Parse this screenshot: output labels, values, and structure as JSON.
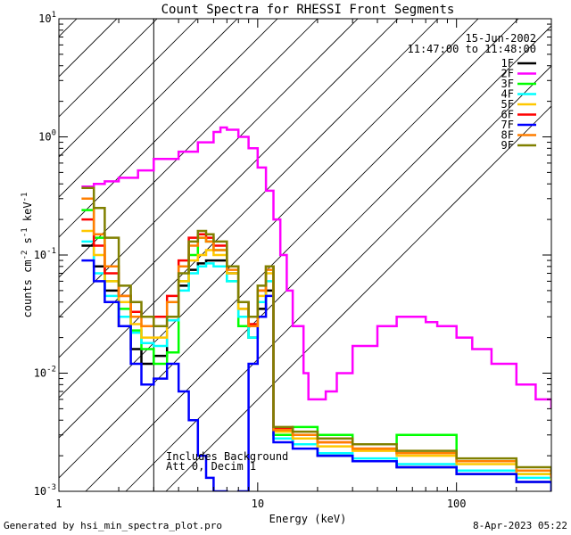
{
  "chart_data": {
    "type": "line",
    "title": "Count Spectra for RHESSI Front Segments",
    "xlabel": "Energy (keV)",
    "ylabel_parts": [
      "counts cm",
      "-2",
      " s",
      "-1",
      " keV",
      "-1"
    ],
    "xscale": "log",
    "yscale": "log",
    "xlim": [
      1,
      300
    ],
    "ylim": [
      0.001,
      10
    ],
    "xticks": [
      {
        "v": 1,
        "label": "1"
      },
      {
        "v": 10,
        "label": "10"
      },
      {
        "v": 100,
        "label": "100"
      }
    ],
    "yticks": [
      {
        "v": 0.001,
        "base": "10",
        "exp": "-3"
      },
      {
        "v": 0.01,
        "base": "10",
        "exp": "-2"
      },
      {
        "v": 0.1,
        "base": "10",
        "exp": "-1"
      },
      {
        "v": 1,
        "base": "10",
        "exp": "0"
      },
      {
        "v": 10,
        "base": "10",
        "exp": "1"
      }
    ],
    "date": "15-Jun-2002",
    "time_range": "11:47:00 to 11:48:00",
    "hatched_region_max_energy": 3,
    "annotations": [
      "Includes Background",
      "Att 0, Decim 1"
    ],
    "series": [
      {
        "name": "1F",
        "color": "#000000",
        "e": [
          1.3,
          1.5,
          1.7,
          2,
          2.3,
          2.6,
          3,
          3.5,
          4,
          4.5,
          5,
          5.5,
          6,
          7,
          8,
          9,
          10,
          11,
          12,
          15,
          20,
          30,
          50,
          100,
          200,
          300
        ],
        "v": [
          0.12,
          0.08,
          0.05,
          0.025,
          0.016,
          0.012,
          0.014,
          0.03,
          0.055,
          0.075,
          0.085,
          0.09,
          0.09,
          0.07,
          0.035,
          0.02,
          0.035,
          0.05,
          0.003,
          0.0025,
          0.002,
          0.0018,
          0.0016,
          0.0014,
          0.0012,
          0.001
        ]
      },
      {
        "name": "2F",
        "color": "#ff00ff",
        "e": [
          1.3,
          1.5,
          1.7,
          2,
          2.5,
          3,
          4,
          5,
          6,
          6.5,
          7,
          8,
          9,
          10,
          11,
          12,
          13,
          14,
          15,
          17,
          18,
          20,
          22,
          25,
          30,
          40,
          50,
          60,
          70,
          80,
          100,
          120,
          150,
          200,
          250,
          300
        ],
        "v": [
          0.38,
          0.4,
          0.42,
          0.45,
          0.52,
          0.65,
          0.75,
          0.9,
          1.1,
          1.2,
          1.15,
          1.0,
          0.8,
          0.55,
          0.35,
          0.2,
          0.1,
          0.05,
          0.025,
          0.01,
          0.006,
          0.006,
          0.007,
          0.01,
          0.017,
          0.025,
          0.03,
          0.03,
          0.027,
          0.025,
          0.02,
          0.016,
          0.012,
          0.008,
          0.006,
          0.005
        ]
      },
      {
        "name": "3F",
        "color": "#00ff00",
        "e": [
          1.3,
          1.5,
          1.7,
          2,
          2.3,
          2.6,
          3,
          3.5,
          4,
          4.5,
          5,
          5.5,
          6,
          7,
          8,
          9,
          10,
          11,
          12,
          15,
          20,
          30,
          50,
          100,
          200,
          300
        ],
        "v": [
          0.24,
          0.14,
          0.06,
          0.035,
          0.023,
          0.016,
          0.012,
          0.015,
          0.06,
          0.1,
          0.14,
          0.13,
          0.11,
          0.06,
          0.025,
          0.02,
          0.04,
          0.08,
          0.003,
          0.0035,
          0.003,
          0.0025,
          0.003,
          0.0018,
          0.0014,
          0.0012
        ]
      },
      {
        "name": "4F",
        "color": "#00ffff",
        "e": [
          1.3,
          1.5,
          1.7,
          2,
          2.3,
          2.6,
          3,
          3.5,
          4,
          4.5,
          5,
          5.5,
          6,
          7,
          8,
          9,
          10,
          11,
          12,
          15,
          20,
          30,
          50,
          100,
          200,
          300
        ],
        "v": [
          0.13,
          0.07,
          0.045,
          0.03,
          0.022,
          0.018,
          0.017,
          0.028,
          0.05,
          0.07,
          0.08,
          0.085,
          0.08,
          0.06,
          0.03,
          0.02,
          0.04,
          0.06,
          0.0028,
          0.0025,
          0.0021,
          0.0019,
          0.0017,
          0.0015,
          0.0013,
          0.0011
        ]
      },
      {
        "name": "5F",
        "color": "#ffc800",
        "e": [
          1.3,
          1.5,
          1.7,
          2,
          2.3,
          2.6,
          3,
          3.5,
          4,
          4.5,
          5,
          5.5,
          6,
          7,
          8,
          9,
          10,
          11,
          12,
          15,
          20,
          30,
          50,
          100,
          200,
          300
        ],
        "v": [
          0.16,
          0.1,
          0.06,
          0.04,
          0.026,
          0.02,
          0.02,
          0.03,
          0.06,
          0.09,
          0.1,
          0.11,
          0.1,
          0.07,
          0.035,
          0.025,
          0.045,
          0.07,
          0.0032,
          0.0028,
          0.0024,
          0.0022,
          0.002,
          0.0017,
          0.0014,
          0.0012
        ]
      },
      {
        "name": "6F",
        "color": "#ff0000",
        "e": [
          1.3,
          1.5,
          1.7,
          2,
          2.3,
          2.6,
          3,
          3.5,
          4,
          4.5,
          5,
          5.5,
          6,
          7,
          8,
          9,
          10,
          11,
          12,
          15,
          20,
          30,
          50,
          100,
          200,
          300
        ],
        "v": [
          0.2,
          0.12,
          0.07,
          0.045,
          0.033,
          0.03,
          0.03,
          0.045,
          0.09,
          0.14,
          0.15,
          0.14,
          0.12,
          0.08,
          0.04,
          0.026,
          0.05,
          0.08,
          0.0034,
          0.003,
          0.0026,
          0.0023,
          0.0021,
          0.0018,
          0.0015,
          0.0013
        ]
      },
      {
        "name": "7F",
        "color": "#0000ff",
        "e": [
          1.3,
          1.5,
          1.7,
          2,
          2.3,
          2.6,
          3,
          3.5,
          4,
          4.5,
          5,
          5.5,
          6,
          7,
          8,
          9,
          10,
          11,
          12,
          15,
          20,
          30,
          50,
          100,
          200,
          300
        ],
        "v": [
          0.09,
          0.06,
          0.04,
          0.025,
          0.012,
          0.008,
          0.009,
          0.012,
          0.007,
          0.004,
          0.002,
          0.0013,
          0.001,
          0.0009,
          0.001,
          0.012,
          0.03,
          0.045,
          0.0026,
          0.0023,
          0.002,
          0.0018,
          0.0016,
          0.0014,
          0.0012,
          0.001
        ]
      },
      {
        "name": "8F",
        "color": "#ff7f00",
        "e": [
          1.3,
          1.5,
          1.7,
          2,
          2.3,
          2.6,
          3,
          3.5,
          4,
          4.5,
          5,
          5.5,
          6,
          7,
          8,
          9,
          10,
          11,
          12,
          15,
          20,
          30,
          50,
          100,
          200,
          300
        ],
        "v": [
          0.3,
          0.15,
          0.08,
          0.045,
          0.03,
          0.025,
          0.025,
          0.04,
          0.08,
          0.12,
          0.14,
          0.13,
          0.11,
          0.075,
          0.04,
          0.025,
          0.05,
          0.075,
          0.0033,
          0.003,
          0.0026,
          0.0023,
          0.0021,
          0.0018,
          0.0015,
          0.0013
        ]
      },
      {
        "name": "9F",
        "color": "#808000",
        "e": [
          1.3,
          1.5,
          1.7,
          2,
          2.3,
          2.6,
          3,
          3.5,
          4,
          4.5,
          5,
          5.5,
          6,
          7,
          8,
          9,
          10,
          11,
          12,
          15,
          20,
          30,
          50,
          100,
          200,
          300
        ],
        "v": [
          0.37,
          0.25,
          0.14,
          0.055,
          0.04,
          0.03,
          0.025,
          0.03,
          0.07,
          0.13,
          0.16,
          0.15,
          0.13,
          0.08,
          0.04,
          0.03,
          0.055,
          0.08,
          0.0035,
          0.0032,
          0.0028,
          0.0025,
          0.0022,
          0.0019,
          0.0016,
          0.0014
        ]
      }
    ]
  },
  "footer": {
    "generated_by": "Generated by hsi_min_spectra_plot.pro",
    "timestamp": "8-Apr-2023 05:22"
  }
}
